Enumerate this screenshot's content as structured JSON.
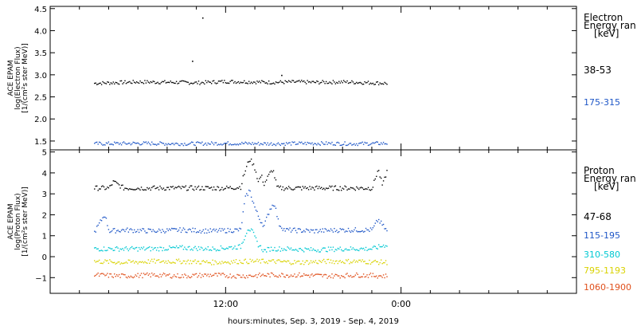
{
  "chart_data": [
    {
      "type": "scatter",
      "ylabel_lines": [
        "ACE EPAM",
        "log(Electron Flux)",
        "[1/(cm²s ster MeV)]"
      ],
      "ylim": [
        1.3,
        4.55
      ],
      "yticks": [
        1.5,
        2.0,
        2.5,
        3.0,
        3.5,
        4.0,
        4.5
      ],
      "ytick_labels": [
        "1.5",
        "2.0",
        "2.5",
        "3.0",
        "3.5",
        "4.0",
        "4.5"
      ],
      "legend_title": [
        "Electron",
        "Energy ran",
        "[keV]"
      ],
      "series": [
        {
          "label": "38-53",
          "color": "#000000",
          "x": [
            3.0,
            6.0,
            9.0,
            10.0,
            12.0,
            14.0,
            15.0,
            17.0,
            18.0,
            20.0,
            21.0,
            23.0
          ],
          "y": [
            2.82,
            2.85,
            2.84,
            2.83,
            2.86,
            2.85,
            2.84,
            2.85,
            2.84,
            2.85,
            2.84,
            2.82
          ]
        },
        {
          "label": "175-315",
          "color": "#1f57c7",
          "x": [
            3.0,
            6.0,
            9.0,
            12.0,
            15.0,
            18.0,
            21.0,
            23.0
          ],
          "y": [
            1.45,
            1.46,
            1.45,
            1.46,
            1.45,
            1.46,
            1.45,
            1.46
          ]
        }
      ],
      "outliers": [
        {
          "x": 9.7,
          "y": 3.32
        },
        {
          "x": 10.4,
          "y": 4.3
        },
        {
          "x": 15.8,
          "y": 3.0
        }
      ]
    },
    {
      "type": "scatter",
      "ylabel_lines": [
        "ACE EPAM",
        "log(Proton Flux)",
        "[1/(cm²s ster MeV)]"
      ],
      "ylim": [
        -1.75,
        5.1
      ],
      "yticks": [
        -1,
        0,
        1,
        2,
        3,
        4,
        5
      ],
      "ytick_labels": [
        "−1",
        "0",
        "1",
        "2",
        "3",
        "4",
        "5"
      ],
      "legend_title": [
        "Proton",
        "Energy ran",
        "[keV]"
      ],
      "series": [
        {
          "label": "47-68",
          "color": "#000000",
          "x": [
            3.0,
            4.0,
            4.3,
            5.0,
            7.0,
            9.0,
            11.0,
            12.0,
            13.0,
            13.2,
            13.6,
            13.8,
            14.0,
            14.2,
            14.4,
            14.6,
            15.0,
            15.2,
            15.4,
            15.5,
            16.0,
            18.0,
            20.0,
            22.0,
            22.4,
            22.7,
            23.0
          ],
          "y": [
            3.3,
            3.3,
            3.6,
            3.3,
            3.3,
            3.3,
            3.3,
            3.3,
            3.35,
            3.9,
            4.7,
            4.5,
            4.2,
            3.6,
            3.9,
            3.5,
            4.0,
            4.2,
            3.6,
            3.3,
            3.3,
            3.3,
            3.3,
            3.3,
            4.2,
            3.4,
            4.1
          ]
        },
        {
          "label": "115-195",
          "color": "#1f57c7",
          "x": [
            3.0,
            3.7,
            4.0,
            5.0,
            7.0,
            9.0,
            11.0,
            13.0,
            13.3,
            13.6,
            14.0,
            14.3,
            14.6,
            15.0,
            15.3,
            15.6,
            16.0,
            18.0,
            20.0,
            22.0,
            22.4,
            23.0
          ],
          "y": [
            1.2,
            2.05,
            1.25,
            1.3,
            1.25,
            1.3,
            1.25,
            1.3,
            2.8,
            3.2,
            2.3,
            1.8,
            1.5,
            2.3,
            2.6,
            1.6,
            1.3,
            1.25,
            1.3,
            1.3,
            1.8,
            1.25
          ]
        },
        {
          "label": "310-580",
          "color": "#00c8d2",
          "x": [
            3.0,
            5.0,
            7.0,
            9.0,
            11.0,
            13.0,
            13.5,
            13.8,
            14.2,
            14.6,
            15.0,
            16.0,
            18.0,
            20.0,
            22.0,
            23.0
          ],
          "y": [
            0.4,
            0.4,
            0.4,
            0.45,
            0.4,
            0.5,
            1.4,
            1.2,
            0.6,
            0.3,
            0.4,
            0.4,
            0.35,
            0.4,
            0.4,
            0.6
          ]
        },
        {
          "label": "795-1193",
          "color": "#d9d200",
          "x": [
            3.0,
            5.0,
            7.0,
            9.0,
            11.0,
            13.0,
            15.0,
            17.0,
            19.0,
            21.0,
            23.0
          ],
          "y": [
            -0.2,
            -0.25,
            -0.2,
            -0.2,
            -0.25,
            -0.2,
            -0.2,
            -0.25,
            -0.2,
            -0.2,
            -0.25
          ]
        },
        {
          "label": "1060-1900",
          "color": "#e0501c",
          "x": [
            3.0,
            5.0,
            7.0,
            9.0,
            11.0,
            13.0,
            15.0,
            17.0,
            19.0,
            21.0,
            23.0
          ],
          "y": [
            -0.85,
            -0.9,
            -0.85,
            -0.9,
            -0.85,
            -0.9,
            -0.85,
            -0.85,
            -0.9,
            -0.85,
            -0.9
          ]
        }
      ]
    }
  ],
  "x_axis": {
    "xlabel": "hours:minutes, Sep.  3, 2019 - Sep.  4, 2019",
    "xlim": [
      0,
      36
    ],
    "major_ticks": [
      12,
      24
    ],
    "major_tick_labels": [
      "12:00",
      "0:00"
    ],
    "minor_ticks": [
      2,
      4,
      6,
      8,
      10,
      14,
      16,
      18,
      20,
      22,
      26,
      28,
      30,
      32,
      34
    ]
  }
}
